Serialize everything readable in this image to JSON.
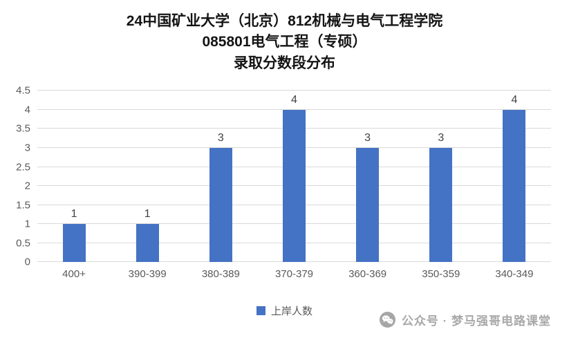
{
  "chart_data": {
    "type": "bar",
    "title": "24中国矿业大学（北京）812机械与电气工程学院 085801电气工程（专硕） 录取分数段分布",
    "title_lines": [
      "24中国矿业大学（北京）812机械与电气工程学院",
      "085801电气工程（专硕）",
      "录取分数段分布"
    ],
    "categories": [
      "400+",
      "390-399",
      "380-389",
      "370-379",
      "360-369",
      "350-359",
      "340-349"
    ],
    "values": [
      1,
      1,
      3,
      4,
      3,
      3,
      4
    ],
    "data_labels": [
      1,
      1,
      3,
      4,
      3,
      3,
      4
    ],
    "series_name": "上岸人数",
    "legend": "上岸人数",
    "xlabel": "",
    "ylabel": "",
    "ylim": [
      0,
      4.5
    ],
    "ytick_step": 0.5,
    "grid": true,
    "legend_position": "bottom",
    "bar_color": "#4472C4",
    "gridline_color": "#d9d9d9"
  },
  "watermark": {
    "text": "公众号 · 梦马强哥电路课堂"
  }
}
